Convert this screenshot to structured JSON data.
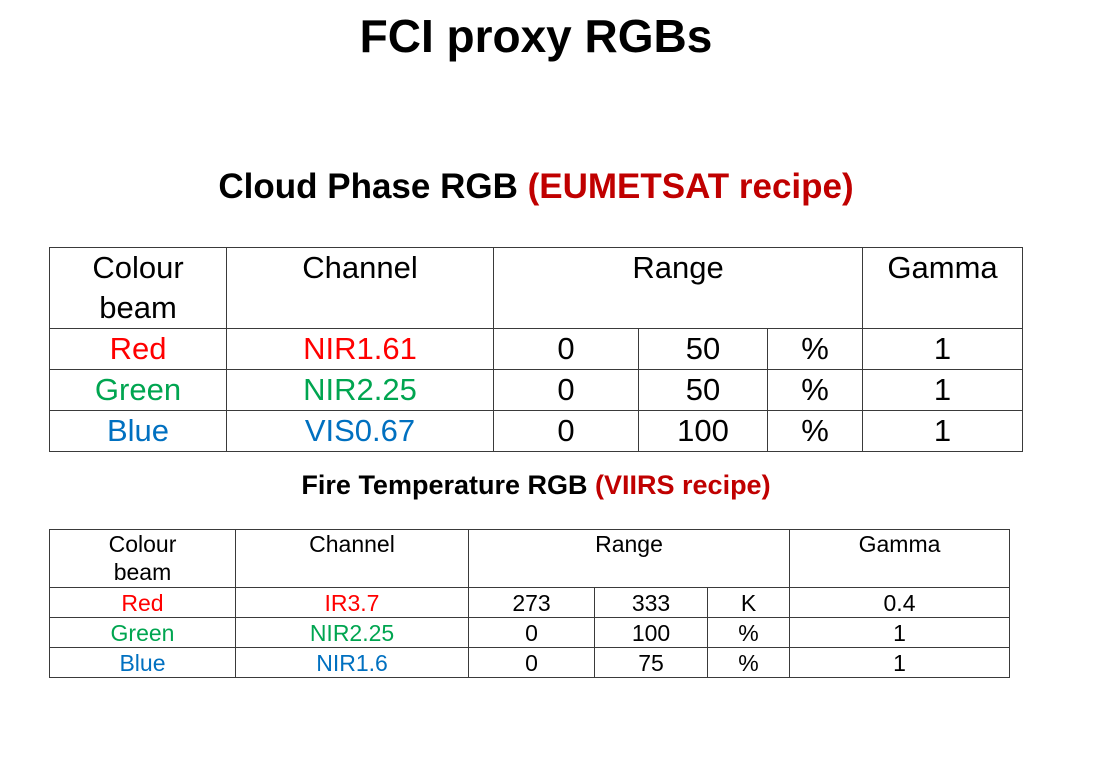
{
  "title": "FCI proxy RGBs",
  "colors": {
    "red": "#ff0000",
    "green": "#00a550",
    "blue": "#0070c0",
    "recipe_highlight": "#c00000"
  },
  "table1": {
    "heading": "Cloud Phase RGB",
    "recipe": "(EUMETSAT recipe)",
    "headers": {
      "colour_beam": [
        "Colour",
        "beam"
      ],
      "channel": "Channel",
      "range": "Range",
      "gamma": "Gamma"
    },
    "rows": [
      {
        "beam": "Red",
        "channel": "NIR1.61",
        "min": "0",
        "max": "50",
        "unit": "%",
        "gamma": "1"
      },
      {
        "beam": "Green",
        "channel": "NIR2.25",
        "min": "0",
        "max": "50",
        "unit": "%",
        "gamma": "1"
      },
      {
        "beam": "Blue",
        "channel": "VIS0.67",
        "min": "0",
        "max": "100",
        "unit": "%",
        "gamma": "1"
      }
    ]
  },
  "table2": {
    "heading": "Fire Temperature RGB",
    "recipe": "(VIIRS recipe)",
    "headers": {
      "colour_beam": [
        "Colour",
        "beam"
      ],
      "channel": "Channel",
      "range": "Range",
      "gamma": "Gamma"
    },
    "rows": [
      {
        "beam": "Red",
        "channel": "IR3.7",
        "min": "273",
        "max": "333",
        "unit": "K",
        "gamma": "0.4"
      },
      {
        "beam": "Green",
        "channel": "NIR2.25",
        "min": "0",
        "max": "100",
        "unit": "%",
        "gamma": "1"
      },
      {
        "beam": "Blue",
        "channel": "NIR1.6",
        "min": "0",
        "max": "75",
        "unit": "%",
        "gamma": "1"
      }
    ]
  }
}
